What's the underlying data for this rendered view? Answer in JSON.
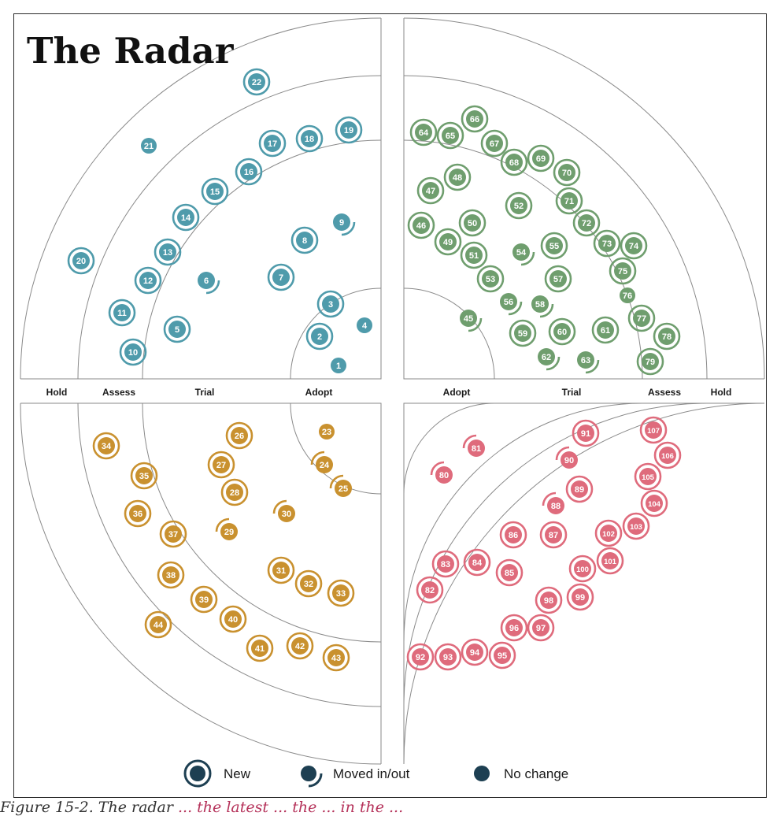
{
  "title": "The Radar",
  "rings": [
    "Adopt",
    "Trial",
    "Assess",
    "Hold"
  ],
  "ring_labels_left": [
    "Hold",
    "Assess",
    "Trial",
    "Adopt"
  ],
  "ring_labels_right": [
    "Adopt",
    "Trial",
    "Assess",
    "Hold"
  ],
  "legend": {
    "new": "New",
    "moved": "Moved in/out",
    "nochange": "No change",
    "color": "#1d3f52"
  },
  "caption": {
    "prefix": "Figure 15-2. The radar ",
    "accent": "... the latest ... the  ...  in the ..."
  },
  "quadrants": [
    {
      "id": "top-left",
      "color": "#4f9bab",
      "blips": [
        {
          "id": 1,
          "status": "nochange"
        },
        {
          "id": 2,
          "status": "new"
        },
        {
          "id": 3,
          "status": "new"
        },
        {
          "id": 4,
          "status": "nochange"
        },
        {
          "id": 5,
          "status": "new"
        },
        {
          "id": 6,
          "status": "moved"
        },
        {
          "id": 7,
          "status": "new"
        },
        {
          "id": 8,
          "status": "new"
        },
        {
          "id": 9,
          "status": "moved"
        },
        {
          "id": 10,
          "status": "new"
        },
        {
          "id": 11,
          "status": "new"
        },
        {
          "id": 12,
          "status": "new"
        },
        {
          "id": 13,
          "status": "new"
        },
        {
          "id": 14,
          "status": "new"
        },
        {
          "id": 15,
          "status": "new"
        },
        {
          "id": 16,
          "status": "new"
        },
        {
          "id": 17,
          "status": "new"
        },
        {
          "id": 18,
          "status": "new"
        },
        {
          "id": 19,
          "status": "new"
        },
        {
          "id": 20,
          "status": "new"
        },
        {
          "id": 21,
          "status": "nochange"
        },
        {
          "id": 22,
          "status": "new"
        }
      ]
    },
    {
      "id": "top-right",
      "color": "#6f9e6e",
      "blips": [
        {
          "id": 45,
          "status": "moved"
        },
        {
          "id": 46,
          "status": "new"
        },
        {
          "id": 47,
          "status": "new"
        },
        {
          "id": 48,
          "status": "new"
        },
        {
          "id": 49,
          "status": "new"
        },
        {
          "id": 50,
          "status": "new"
        },
        {
          "id": 51,
          "status": "new"
        },
        {
          "id": 52,
          "status": "new"
        },
        {
          "id": 53,
          "status": "new"
        },
        {
          "id": 54,
          "status": "moved"
        },
        {
          "id": 55,
          "status": "new"
        },
        {
          "id": 56,
          "status": "moved"
        },
        {
          "id": 57,
          "status": "new"
        },
        {
          "id": 58,
          "status": "moved"
        },
        {
          "id": 59,
          "status": "new"
        },
        {
          "id": 60,
          "status": "new"
        },
        {
          "id": 61,
          "status": "new"
        },
        {
          "id": 62,
          "status": "moved"
        },
        {
          "id": 63,
          "status": "moved"
        },
        {
          "id": 64,
          "status": "new"
        },
        {
          "id": 65,
          "status": "new"
        },
        {
          "id": 66,
          "status": "new"
        },
        {
          "id": 67,
          "status": "new"
        },
        {
          "id": 68,
          "status": "new"
        },
        {
          "id": 69,
          "status": "new"
        },
        {
          "id": 70,
          "status": "new"
        },
        {
          "id": 71,
          "status": "new"
        },
        {
          "id": 72,
          "status": "new"
        },
        {
          "id": 73,
          "status": "new"
        },
        {
          "id": 74,
          "status": "new"
        },
        {
          "id": 75,
          "status": "new"
        },
        {
          "id": 76,
          "status": "nochange"
        },
        {
          "id": 77,
          "status": "new"
        },
        {
          "id": 78,
          "status": "new"
        },
        {
          "id": 79,
          "status": "new"
        }
      ]
    },
    {
      "id": "bottom-left",
      "color": "#c9912f",
      "blips": [
        {
          "id": 23,
          "status": "nochange"
        },
        {
          "id": 24,
          "status": "moved"
        },
        {
          "id": 25,
          "status": "moved"
        },
        {
          "id": 26,
          "status": "new"
        },
        {
          "id": 27,
          "status": "new"
        },
        {
          "id": 28,
          "status": "new"
        },
        {
          "id": 29,
          "status": "moved"
        },
        {
          "id": 30,
          "status": "moved"
        },
        {
          "id": 31,
          "status": "new"
        },
        {
          "id": 32,
          "status": "new"
        },
        {
          "id": 33,
          "status": "new"
        },
        {
          "id": 34,
          "status": "new"
        },
        {
          "id": 35,
          "status": "new"
        },
        {
          "id": 36,
          "status": "new"
        },
        {
          "id": 37,
          "status": "new"
        },
        {
          "id": 38,
          "status": "new"
        },
        {
          "id": 39,
          "status": "new"
        },
        {
          "id": 40,
          "status": "new"
        },
        {
          "id": 41,
          "status": "new"
        },
        {
          "id": 42,
          "status": "new"
        },
        {
          "id": 43,
          "status": "new"
        },
        {
          "id": 44,
          "status": "new"
        }
      ]
    },
    {
      "id": "bottom-right",
      "color": "#df6b7c",
      "blips": [
        {
          "id": 80,
          "status": "moved"
        },
        {
          "id": 81,
          "status": "moved"
        },
        {
          "id": 82,
          "status": "new"
        },
        {
          "id": 83,
          "status": "new"
        },
        {
          "id": 84,
          "status": "new"
        },
        {
          "id": 85,
          "status": "new"
        },
        {
          "id": 86,
          "status": "new"
        },
        {
          "id": 87,
          "status": "new"
        },
        {
          "id": 88,
          "status": "moved"
        },
        {
          "id": 89,
          "status": "new"
        },
        {
          "id": 90,
          "status": "moved"
        },
        {
          "id": 91,
          "status": "new"
        },
        {
          "id": 92,
          "status": "new"
        },
        {
          "id": 93,
          "status": "new"
        },
        {
          "id": 94,
          "status": "new"
        },
        {
          "id": 95,
          "status": "new"
        },
        {
          "id": 96,
          "status": "new"
        },
        {
          "id": 97,
          "status": "new"
        },
        {
          "id": 98,
          "status": "new"
        },
        {
          "id": 99,
          "status": "new"
        },
        {
          "id": 100,
          "status": "new"
        },
        {
          "id": 101,
          "status": "new"
        },
        {
          "id": 102,
          "status": "new"
        },
        {
          "id": 103,
          "status": "new"
        },
        {
          "id": 104,
          "status": "new"
        },
        {
          "id": 105,
          "status": "new"
        },
        {
          "id": 106,
          "status": "new"
        },
        {
          "id": 107,
          "status": "new"
        }
      ]
    }
  ]
}
